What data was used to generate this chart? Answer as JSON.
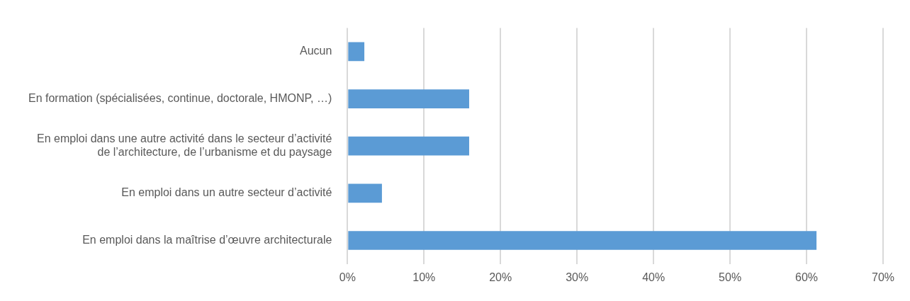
{
  "chart_data": {
    "type": "bar",
    "orientation": "horizontal",
    "categories": [
      "Aucun",
      "En formation (spécialisées, continue, doctorale, HMONP, …)",
      "En emploi dans une autre activité dans le secteur d’activité de l’architecture, de l’urbanisme et du paysage",
      "En emploi dans un autre secteur d’activité",
      "En emploi dans la maîtrise d’œuvre architecturale"
    ],
    "values": [
      2.2,
      15.9,
      15.9,
      4.5,
      61.3
    ],
    "color": "#5b9bd5",
    "xlim": [
      0,
      70
    ],
    "xticks": [
      {
        "value": 0,
        "label": "0%"
      },
      {
        "value": 10,
        "label": "10%"
      },
      {
        "value": 20,
        "label": "20%"
      },
      {
        "value": 30,
        "label": "30%"
      },
      {
        "value": 40,
        "label": "40%"
      },
      {
        "value": 50,
        "label": "50%"
      },
      {
        "value": 60,
        "label": "60%"
      },
      {
        "value": 70,
        "label": "70%"
      }
    ],
    "grid": "x",
    "legend": false
  }
}
